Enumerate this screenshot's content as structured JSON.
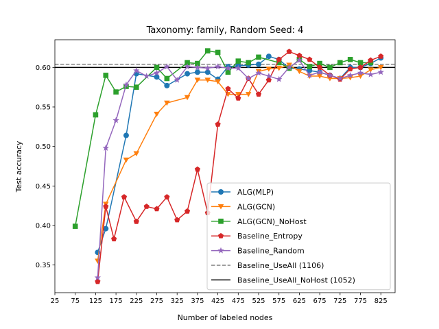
{
  "chart_data": {
    "type": "line",
    "title": "Taxonomy: family, Random Seed: 4",
    "xlabel": "Number of labeled nodes",
    "ylabel": "Test accuracy",
    "xlim": [
      25,
      860
    ],
    "ylim": [
      0.315,
      0.635
    ],
    "xticks": [
      25,
      75,
      125,
      175,
      225,
      275,
      325,
      375,
      425,
      475,
      525,
      575,
      625,
      675,
      725,
      775,
      825
    ],
    "yticks": [
      0.35,
      0.4,
      0.45,
      0.5,
      0.55,
      0.6
    ],
    "ytick_labels": [
      "0.35",
      "0.40",
      "0.45",
      "0.50",
      "0.55",
      "0.60"
    ],
    "grid": false,
    "legend_position": "lower-right",
    "series": [
      {
        "name": "ALG(MLP)",
        "color": "#1f77b4",
        "marker": "circle",
        "x": [
          130,
          150,
          200,
          225,
          275,
          300,
          350,
          375,
          400,
          425,
          450,
          475,
          500,
          525,
          550,
          575,
          600,
          625,
          650,
          675,
          700,
          725,
          750,
          775,
          800,
          825
        ],
        "y": [
          0.366,
          0.396,
          0.514,
          0.592,
          0.588,
          0.577,
          0.592,
          0.594,
          0.594,
          0.585,
          0.601,
          0.602,
          0.603,
          0.604,
          0.614,
          0.61,
          0.599,
          0.598,
          0.596,
          0.594,
          0.59,
          0.586,
          0.6,
          0.6,
          0.605,
          0.612
        ]
      },
      {
        "name": "ALG(GCN)",
        "color": "#ff7f0e",
        "marker": "triangle-down",
        "x": [
          130,
          150,
          200,
          225,
          275,
          300,
          350,
          375,
          400,
          425,
          450,
          475,
          500,
          525,
          550,
          575,
          600,
          625,
          650,
          675,
          700,
          725,
          750,
          775,
          800,
          825
        ],
        "y": [
          0.355,
          0.427,
          0.483,
          0.491,
          0.541,
          0.555,
          0.562,
          0.584,
          0.584,
          0.582,
          0.566,
          0.566,
          0.566,
          0.595,
          0.598,
          0.599,
          0.603,
          0.595,
          0.589,
          0.589,
          0.586,
          0.586,
          0.587,
          0.589,
          0.597,
          0.6
        ]
      },
      {
        "name": "ALG(GCN)_NoHost",
        "color": "#2ca02c",
        "marker": "square",
        "x": [
          75,
          125,
          150,
          175,
          200,
          225,
          275,
          300,
          350,
          375,
          400,
          425,
          450,
          475,
          500,
          525,
          575,
          600,
          625,
          650,
          675,
          700,
          725,
          750,
          775,
          800
        ],
        "y": [
          0.399,
          0.54,
          0.59,
          0.569,
          0.576,
          0.575,
          0.6,
          0.586,
          0.606,
          0.605,
          0.621,
          0.619,
          0.594,
          0.608,
          0.606,
          0.613,
          0.606,
          0.599,
          0.61,
          0.601,
          0.605,
          0.6,
          0.606,
          0.61,
          0.606,
          0.606
        ]
      },
      {
        "name": "Baseline_Entropy",
        "color": "#d62728",
        "marker": "pentagon",
        "x": [
          130,
          150,
          170,
          195,
          225,
          250,
          275,
          300,
          325,
          350,
          375,
          400,
          425,
          450,
          475,
          500,
          525,
          550,
          575,
          600,
          625,
          650,
          675,
          700,
          725,
          750,
          775,
          800,
          825
        ],
        "y": [
          0.329,
          0.424,
          0.383,
          0.436,
          0.405,
          0.424,
          0.421,
          0.436,
          0.407,
          0.418,
          0.471,
          0.416,
          0.528,
          0.573,
          0.561,
          0.586,
          0.566,
          0.584,
          0.61,
          0.62,
          0.615,
          0.61,
          0.6,
          0.59,
          0.585,
          0.598,
          0.6,
          0.609,
          0.614
        ]
      },
      {
        "name": "Baseline_Random",
        "color": "#9467bd",
        "marker": "star",
        "x": [
          130,
          150,
          175,
          200,
          225,
          250,
          275,
          300,
          325,
          350,
          375,
          400,
          425,
          450,
          475,
          500,
          525,
          550,
          575,
          600,
          625,
          650,
          675,
          700,
          725,
          750,
          775,
          800,
          825
        ],
        "y": [
          0.334,
          0.498,
          0.533,
          0.578,
          0.596,
          0.589,
          0.593,
          0.601,
          0.584,
          0.601,
          0.6,
          0.599,
          0.601,
          0.599,
          0.599,
          0.586,
          0.593,
          0.589,
          0.585,
          0.6,
          0.609,
          0.59,
          0.594,
          0.59,
          0.586,
          0.59,
          0.593,
          0.591,
          0.594
        ]
      }
    ],
    "reference_lines": [
      {
        "name": "Baseline_UseAll (1106)",
        "color": "#7f7f7f",
        "style": "dashed",
        "y": 0.604
      },
      {
        "name": "Baseline_UseAll_NoHost (1052)",
        "color": "#000000",
        "style": "solid",
        "y": 0.6
      }
    ]
  }
}
